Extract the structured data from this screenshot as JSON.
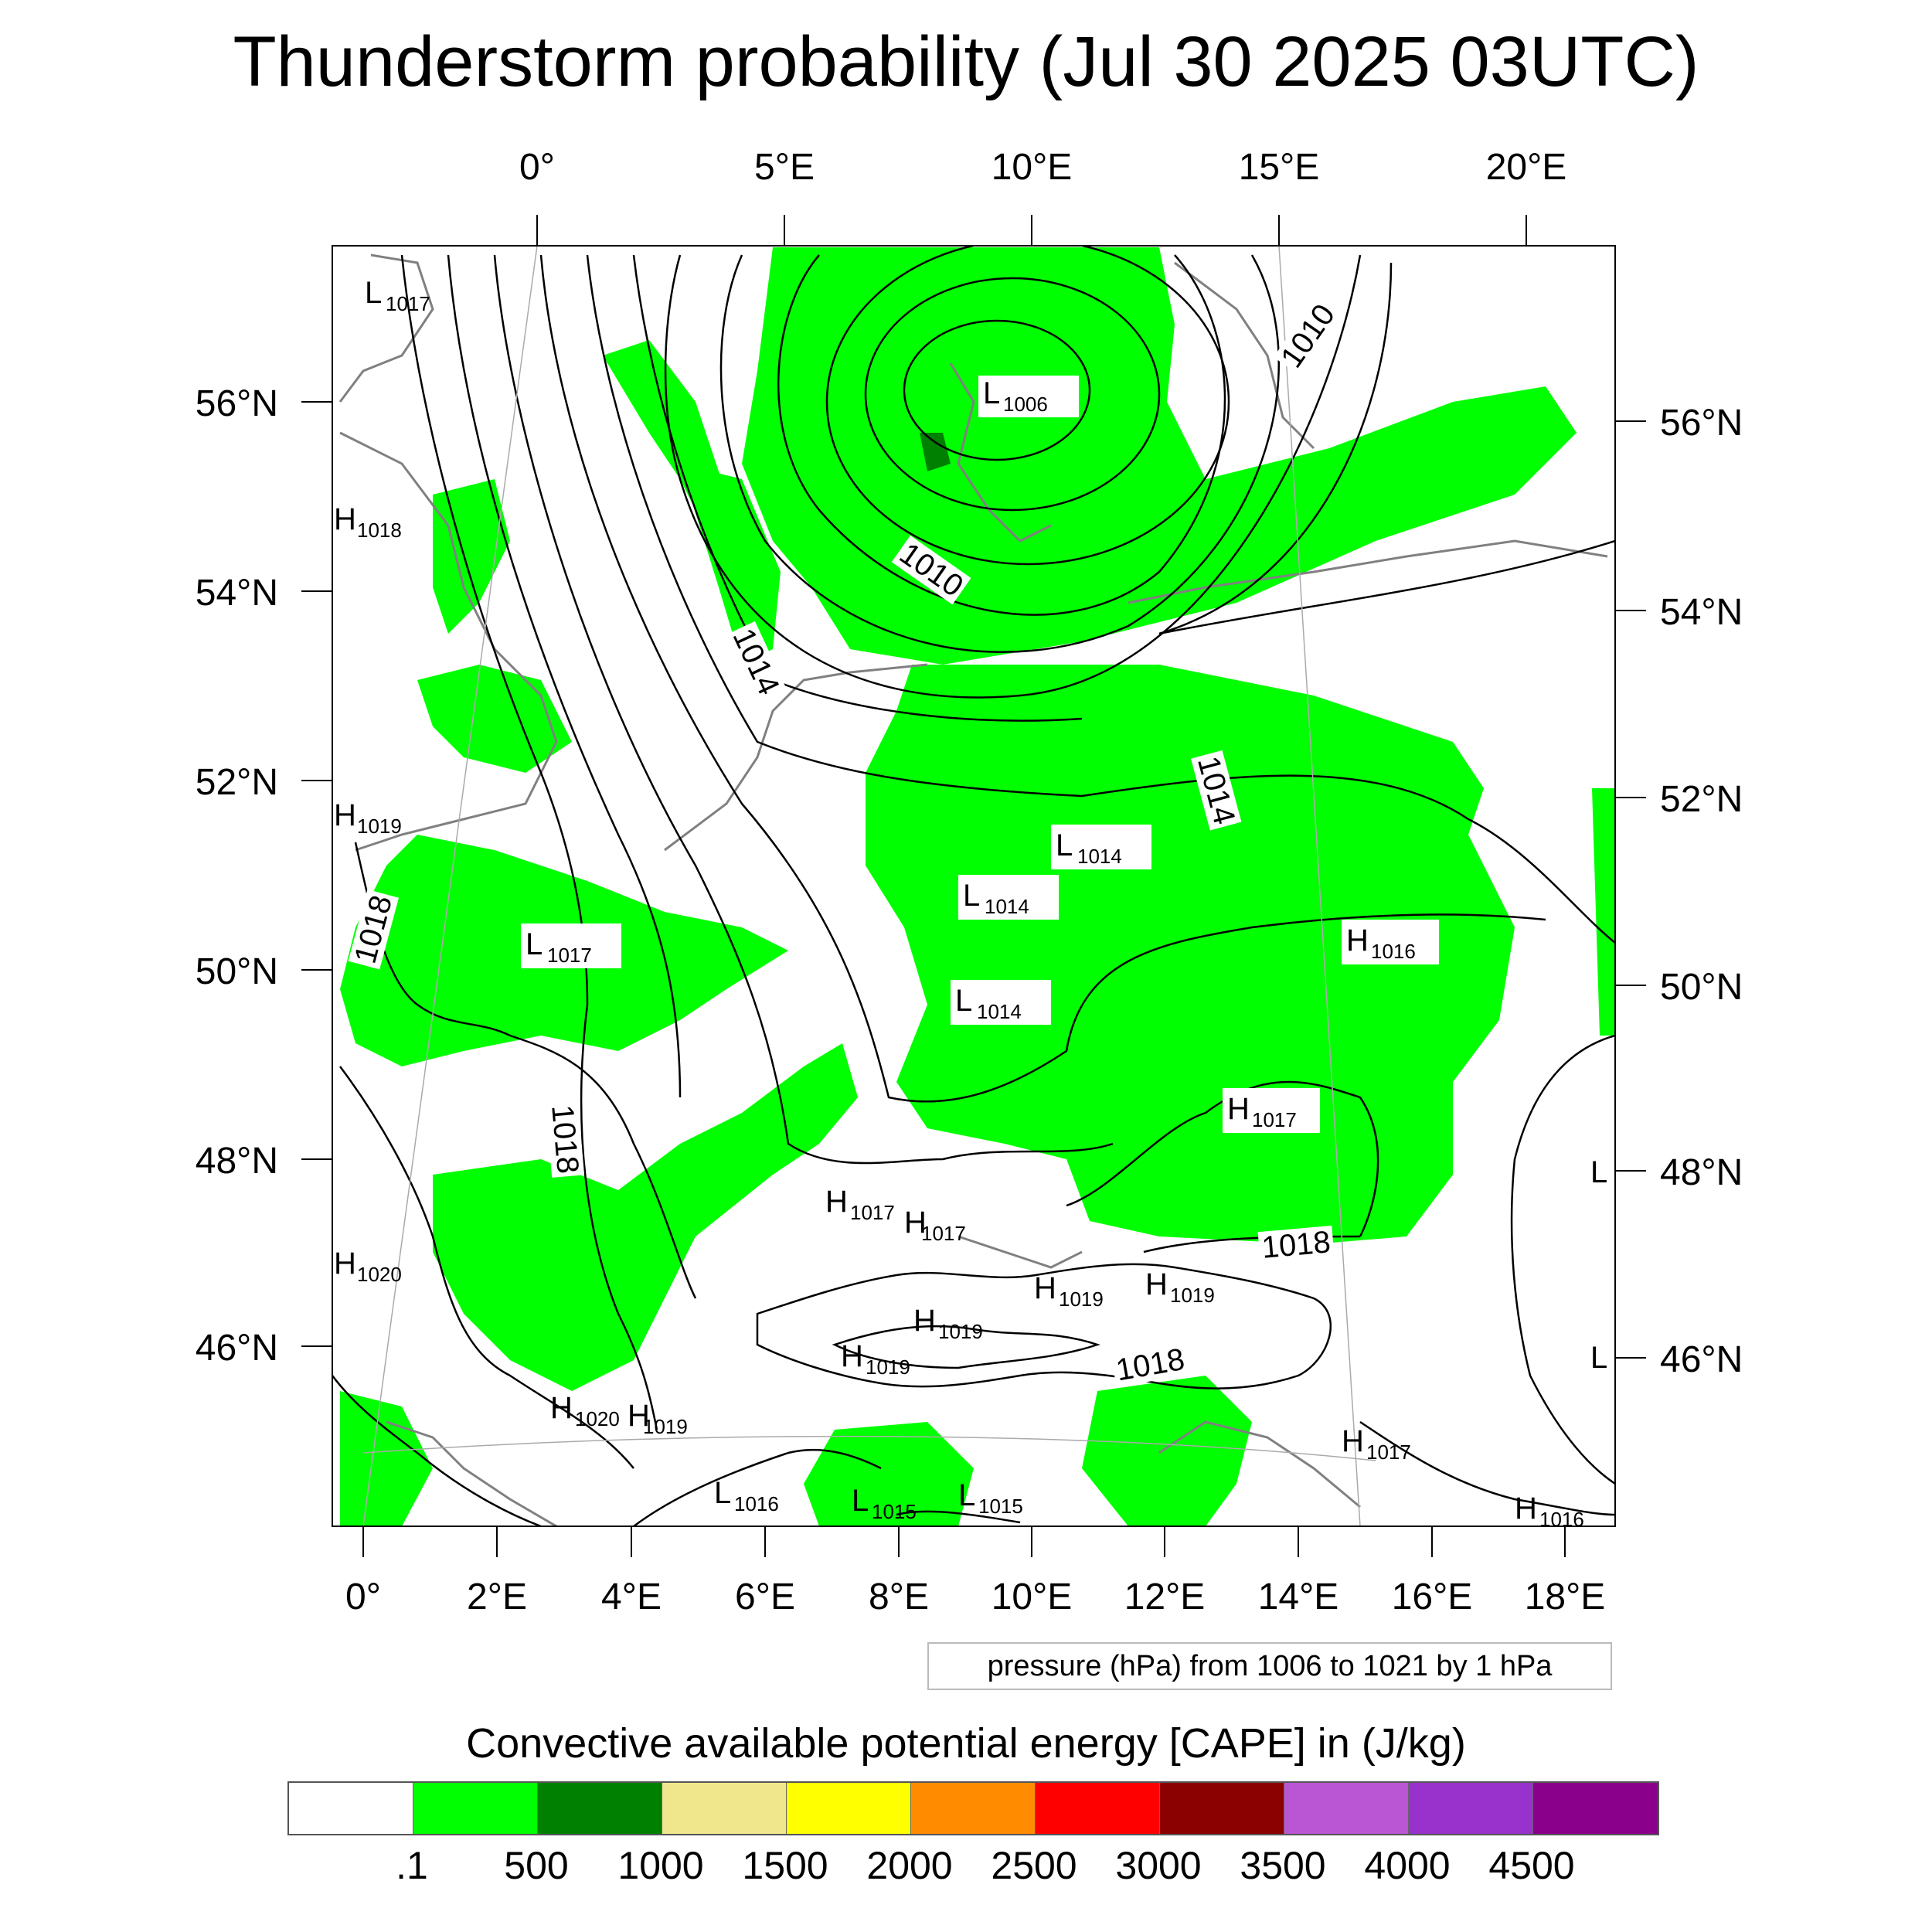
{
  "title": "Thunderstorm probability (Jul 30 2025 03UTC)",
  "top_lon_labels": [
    "0°",
    "5°E",
    "10°E",
    "15°E",
    "20°E"
  ],
  "bottom_lon_labels": [
    "0°",
    "2°E",
    "4°E",
    "6°E",
    "8°E",
    "10°E",
    "12°E",
    "14°E",
    "16°E",
    "18°E"
  ],
  "left_lat_labels": [
    "56°N",
    "54°N",
    "52°N",
    "50°N",
    "48°N",
    "46°N"
  ],
  "right_lat_labels": [
    "56°N",
    "54°N",
    "52°N",
    "50°N",
    "48°N",
    "46°N"
  ],
  "isobar_labels": [
    "1010",
    "1010",
    "1014",
    "1014",
    "1018",
    "1018",
    "1018",
    "1018"
  ],
  "pressure_centers": [
    {
      "letter": "L",
      "value": "1017"
    },
    {
      "letter": "H",
      "value": "1018"
    },
    {
      "letter": "L",
      "value": "1006"
    },
    {
      "letter": "H",
      "value": "1019"
    },
    {
      "letter": "L",
      "value": "1014"
    },
    {
      "letter": "L",
      "value": "1014"
    },
    {
      "letter": "L",
      "value": "1017"
    },
    {
      "letter": "H",
      "value": "1016"
    },
    {
      "letter": "L",
      "value": "1014"
    },
    {
      "letter": "H",
      "value": "1017"
    },
    {
      "letter": "H",
      "value": "1017"
    },
    {
      "letter": "H",
      "value": "1017"
    },
    {
      "letter": "H",
      "value": "1020"
    },
    {
      "letter": "H",
      "value": "1019"
    },
    {
      "letter": "H",
      "value": "1019"
    },
    {
      "letter": "H",
      "value": "1019"
    },
    {
      "letter": "H",
      "value": "1019"
    },
    {
      "letter": "H",
      "value": "1020"
    },
    {
      "letter": "H",
      "value": "1019"
    },
    {
      "letter": "L",
      "value": "1016"
    },
    {
      "letter": "L",
      "value": "1015"
    },
    {
      "letter": "L",
      "value": "1015"
    },
    {
      "letter": "H",
      "value": "1017"
    },
    {
      "letter": "H",
      "value": "1016"
    },
    {
      "letter": "L",
      "value": ""
    },
    {
      "letter": "L",
      "value": ""
    }
  ],
  "info_text": "pressure (hPa) from 1006 to 1021 by 1 hPa",
  "colorbar": {
    "title": "Convective available potential energy [CAPE] in (J/kg)",
    "colors": [
      "#ffffff",
      "#00ff00",
      "#008000",
      "#f0e68c",
      "#ffff00",
      "#ff8c00",
      "#ff0000",
      "#8b0000",
      "#ba55d3",
      "#9932cc",
      "#8b008b"
    ],
    "labels": [
      ".1",
      "500",
      "1000",
      "1500",
      "2000",
      "2500",
      "3000",
      "3500",
      "4000",
      "4500"
    ]
  },
  "colors": {
    "cape_green": "#00ff00",
    "cape_dark_green": "#008000",
    "coast": "#808080",
    "isobar": "#000000"
  }
}
